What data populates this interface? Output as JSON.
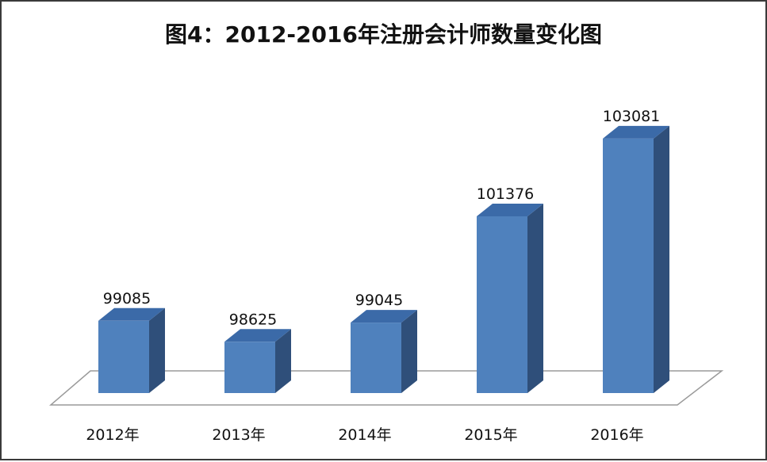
{
  "chart_data": {
    "type": "bar",
    "title": "图4：2012-2016年注册会计师数量变化图",
    "categories": [
      "2012年",
      "2013年",
      "2014年",
      "2015年",
      "2016年"
    ],
    "values": [
      99085,
      98625,
      99045,
      101376,
      103081
    ],
    "xlabel": "",
    "ylabel": "",
    "ylim": [
      97500,
      104000
    ],
    "grid": false,
    "legend": "none",
    "style": "3d-column",
    "colors": {
      "bar_front": "#4f81bd",
      "bar_side": "#2f4f7a",
      "bar_top": "#3b6aa8",
      "floor_stroke": "#9a9a9a"
    }
  }
}
